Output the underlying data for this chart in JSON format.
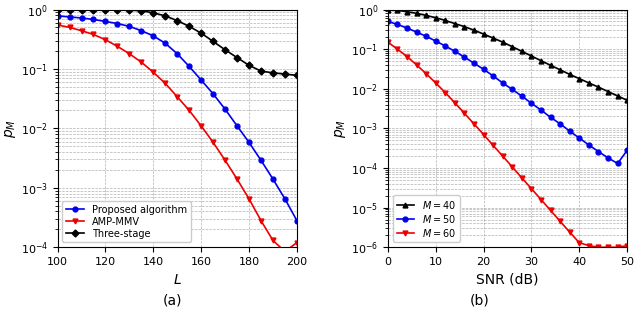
{
  "subplot_a": {
    "xlabel": "$L$",
    "ylabel": "$p_M$",
    "xlim": [
      100,
      200
    ],
    "ylim_log": [
      -4,
      0
    ],
    "x": [
      100,
      105,
      110,
      115,
      120,
      125,
      130,
      135,
      140,
      145,
      150,
      155,
      160,
      165,
      170,
      175,
      180,
      185,
      190,
      195,
      200
    ],
    "proposed": [
      0.78,
      0.75,
      0.72,
      0.68,
      0.63,
      0.58,
      0.52,
      0.44,
      0.36,
      0.27,
      0.18,
      0.11,
      0.065,
      0.038,
      0.021,
      0.011,
      0.0058,
      0.0029,
      0.0014,
      0.00065,
      0.00028
    ],
    "amp_mmv": [
      0.55,
      0.5,
      0.44,
      0.38,
      0.31,
      0.24,
      0.18,
      0.13,
      0.088,
      0.057,
      0.034,
      0.02,
      0.011,
      0.0058,
      0.0029,
      0.0014,
      0.00065,
      0.00028,
      0.00013,
      8.5e-05,
      0.00012
    ],
    "three_stage": [
      1.0,
      1.0,
      1.0,
      1.0,
      1.0,
      1.0,
      0.98,
      0.95,
      0.88,
      0.78,
      0.65,
      0.52,
      0.4,
      0.29,
      0.21,
      0.155,
      0.115,
      0.092,
      0.086,
      0.082,
      0.078
    ],
    "legend_order": [
      "proposed",
      "amp_mmv",
      "three_stage"
    ],
    "legend_labels": [
      "Proposed algorithm",
      "AMP-MMV",
      "Three-stage"
    ]
  },
  "subplot_b": {
    "xlabel": "SNR (dB)",
    "ylabel": "$p_M$",
    "xlim": [
      0,
      50
    ],
    "ylim_log": [
      -6,
      0
    ],
    "x": [
      0,
      2,
      4,
      6,
      8,
      10,
      12,
      14,
      16,
      18,
      20,
      22,
      24,
      26,
      28,
      30,
      32,
      34,
      36,
      38,
      40,
      42,
      44,
      46,
      48,
      50
    ],
    "m40": [
      1.0,
      0.95,
      0.88,
      0.8,
      0.71,
      0.62,
      0.53,
      0.44,
      0.37,
      0.3,
      0.24,
      0.19,
      0.15,
      0.115,
      0.088,
      0.067,
      0.051,
      0.039,
      0.03,
      0.023,
      0.018,
      0.014,
      0.011,
      0.0085,
      0.0066,
      0.0051
    ],
    "m50": [
      0.5,
      0.42,
      0.34,
      0.27,
      0.21,
      0.16,
      0.12,
      0.088,
      0.063,
      0.044,
      0.031,
      0.021,
      0.014,
      0.0096,
      0.0065,
      0.0043,
      0.0029,
      0.0019,
      0.0013,
      0.00085,
      0.00057,
      0.00038,
      0.00026,
      0.00018,
      0.00013,
      0.00028
    ],
    "m60": [
      0.15,
      0.1,
      0.065,
      0.04,
      0.024,
      0.014,
      0.008,
      0.0044,
      0.0024,
      0.0013,
      0.0007,
      0.00037,
      0.0002,
      0.000106,
      5.6e-05,
      3e-05,
      1.6e-05,
      8.5e-06,
      4.5e-06,
      2.4e-06,
      1.3e-06,
      1.1e-06,
      1e-06,
      1e-06,
      1e-06,
      1.1e-06
    ],
    "legend_labels": [
      "$M = 40$",
      "$M = 50$",
      "$M = 60$"
    ]
  },
  "proposed_color": "#0000ee",
  "amp_color": "#ee0000",
  "three_stage_color": "#000000",
  "m40_color": "#000000",
  "m50_color": "#0000ee",
  "m60_color": "#ee0000"
}
